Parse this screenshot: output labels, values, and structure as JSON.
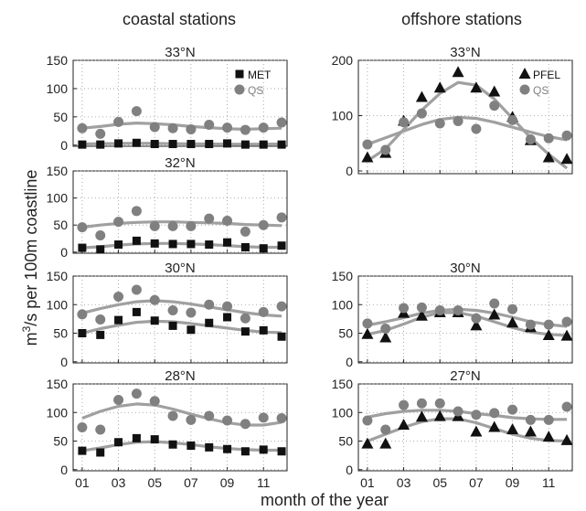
{
  "column_titles": {
    "left": "coastal stations",
    "right": "offshore stations"
  },
  "ylabel_prefix": "m",
  "ylabel_sup": "3",
  "ylabel_suffix": "/s per 100m coastline",
  "xlabel": "month of the year",
  "colors": {
    "met": "#111111",
    "qs": "#808080",
    "fit": "#a0a0a0",
    "grid": "#999999",
    "frame": "#222222"
  },
  "chart_data": [
    {
      "type": "scatter",
      "title": "33°N",
      "column": "coastal stations",
      "ylim": [
        -2,
        150
      ],
      "yticks": [
        "0",
        "50",
        "100",
        "150"
      ],
      "legend": [
        "MET",
        "QS"
      ],
      "legend_position": "top-right",
      "x": [
        1,
        2,
        3,
        4,
        5,
        6,
        7,
        8,
        9,
        10,
        11,
        12
      ],
      "series": [
        {
          "name": "MET",
          "marker": "square",
          "values": [
            1,
            1,
            3,
            4,
            2,
            2,
            2,
            2,
            3,
            1,
            1,
            1
          ],
          "fit": [
            2,
            2.5,
            3,
            3.2,
            3,
            2.6,
            2.2,
            2,
            1.8,
            1.7,
            1.8,
            2
          ]
        },
        {
          "name": "QS",
          "marker": "circle",
          "values": [
            30,
            20,
            41,
            60,
            32,
            30,
            28,
            36,
            31,
            27,
            31,
            40
          ],
          "fit": [
            30,
            33,
            37,
            39,
            38,
            36,
            33,
            31,
            29,
            28,
            29,
            30
          ]
        }
      ]
    },
    {
      "type": "scatter",
      "title": "32°N",
      "column": "coastal stations",
      "ylim": [
        -2,
        150
      ],
      "yticks": [
        "0",
        "50",
        "100",
        "150"
      ],
      "x": [
        1,
        2,
        3,
        4,
        5,
        6,
        7,
        8,
        9,
        10,
        11,
        12
      ],
      "series": [
        {
          "name": "MET",
          "marker": "square",
          "values": [
            8,
            5,
            14,
            21,
            16,
            15,
            15,
            14,
            18,
            9,
            7,
            12
          ],
          "fit": [
            8,
            10,
            13,
            15,
            16,
            16,
            15,
            14,
            12,
            10,
            9,
            9
          ]
        },
        {
          "name": "QS",
          "marker": "circle",
          "values": [
            46,
            31,
            56,
            76,
            48,
            48,
            48,
            62,
            58,
            38,
            50,
            64
          ],
          "fit": [
            46,
            50,
            53,
            55,
            56,
            56,
            55,
            54,
            53,
            51,
            50,
            49
          ]
        }
      ]
    },
    {
      "type": "scatter",
      "title": "30°N",
      "column": "coastal stations",
      "ylim": [
        -2,
        150
      ],
      "yticks": [
        "0",
        "50",
        "100",
        "150"
      ],
      "x": [
        1,
        2,
        3,
        4,
        5,
        6,
        7,
        8,
        9,
        10,
        11,
        12
      ],
      "series": [
        {
          "name": "MET",
          "marker": "square",
          "values": [
            50,
            47,
            73,
            87,
            72,
            63,
            56,
            68,
            78,
            53,
            55,
            44
          ],
          "fit": [
            50,
            58,
            64,
            69,
            71,
            70,
            67,
            63,
            59,
            55,
            52,
            51
          ]
        },
        {
          "name": "QS",
          "marker": "circle",
          "values": [
            83,
            74,
            114,
            126,
            108,
            90,
            86,
            100,
            97,
            76,
            87,
            97
          ],
          "fit": [
            85,
            93,
            100,
            105,
            107,
            105,
            101,
            96,
            91,
            86,
            82,
            80
          ]
        }
      ]
    },
    {
      "type": "scatter",
      "title": "28°N",
      "column": "coastal stations",
      "ylim": [
        -2,
        150
      ],
      "yticks": [
        "0",
        "50",
        "100",
        "150"
      ],
      "x": [
        1,
        2,
        3,
        4,
        5,
        6,
        7,
        8,
        9,
        10,
        11,
        12
      ],
      "series": [
        {
          "name": "MET",
          "marker": "square",
          "values": [
            33,
            30,
            48,
            55,
            53,
            44,
            42,
            39,
            36,
            32,
            35,
            32
          ],
          "fit": [
            33,
            38,
            44,
            48,
            49,
            47,
            44,
            40,
            37,
            35,
            34,
            34
          ]
        },
        {
          "name": "QS",
          "marker": "circle",
          "values": [
            74,
            70,
            122,
            133,
            120,
            94,
            87,
            94,
            86,
            80,
            91,
            90
          ],
          "fit": [
            90,
            102,
            111,
            115,
            113,
            106,
            97,
            89,
            82,
            78,
            78,
            83
          ]
        }
      ]
    },
    {
      "type": "scatter",
      "title": "33°N",
      "column": "offshore stations",
      "ylim": [
        -5,
        200
      ],
      "yticks": [
        "0",
        "100",
        "200"
      ],
      "legend": [
        "PFEL",
        "QS"
      ],
      "legend_position": "top-right",
      "x": [
        1,
        2,
        3,
        4,
        5,
        6,
        7,
        8,
        9,
        10,
        11,
        12
      ],
      "series": [
        {
          "name": "PFEL",
          "marker": "triangle",
          "values": [
            24,
            32,
            90,
            133,
            150,
            178,
            150,
            143,
            97,
            55,
            24,
            21
          ],
          "fit": [
            18,
            40,
            75,
            110,
            140,
            160,
            155,
            130,
            95,
            60,
            30,
            5
          ]
        },
        {
          "name": "QS",
          "marker": "circle",
          "values": [
            48,
            38,
            88,
            104,
            86,
            90,
            76,
            118,
            92,
            57,
            59,
            64
          ],
          "fit": [
            48,
            60,
            72,
            84,
            93,
            97,
            95,
            88,
            79,
            70,
            62,
            56
          ]
        }
      ]
    },
    {
      "type": "scatter",
      "title": "30°N",
      "column": "offshore stations",
      "ylim": [
        -2,
        150
      ],
      "yticks": [
        "0",
        "50",
        "100",
        "150"
      ],
      "x": [
        1,
        2,
        3,
        4,
        5,
        6,
        7,
        8,
        9,
        10,
        11,
        12
      ],
      "series": [
        {
          "name": "PFEL",
          "marker": "triangle",
          "values": [
            48,
            42,
            85,
            80,
            86,
            86,
            63,
            82,
            68,
            60,
            46,
            45
          ],
          "fit": [
            48,
            55,
            66,
            78,
            86,
            86,
            80,
            70,
            60,
            52,
            48,
            46
          ]
        },
        {
          "name": "QS",
          "marker": "circle",
          "values": [
            67,
            58,
            94,
            95,
            90,
            90,
            76,
            102,
            92,
            65,
            65,
            70
          ],
          "fit": [
            64,
            70,
            77,
            85,
            90,
            92,
            90,
            85,
            78,
            70,
            65,
            62
          ]
        }
      ]
    },
    {
      "type": "scatter",
      "title": "27°N",
      "column": "offshore stations",
      "ylim": [
        -2,
        150
      ],
      "yticks": [
        "0",
        "50",
        "100",
        "150"
      ],
      "x": [
        1,
        2,
        3,
        4,
        5,
        6,
        7,
        8,
        9,
        10,
        11,
        12
      ],
      "series": [
        {
          "name": "PFEL",
          "marker": "triangle",
          "values": [
            45,
            45,
            78,
            92,
            93,
            93,
            66,
            74,
            70,
            66,
            57,
            51
          ],
          "fit": [
            50,
            62,
            74,
            84,
            89,
            89,
            82,
            72,
            62,
            55,
            51,
            50
          ]
        },
        {
          "name": "QS",
          "marker": "circle",
          "values": [
            86,
            70,
            113,
            116,
            116,
            102,
            96,
            99,
            105,
            87,
            87,
            110
          ],
          "fit": [
            92,
            98,
            102,
            104,
            104,
            102,
            98,
            95,
            91,
            89,
            88,
            88
          ]
        }
      ]
    }
  ],
  "xticks": [
    "01",
    "03",
    "05",
    "07",
    "09",
    "11"
  ]
}
